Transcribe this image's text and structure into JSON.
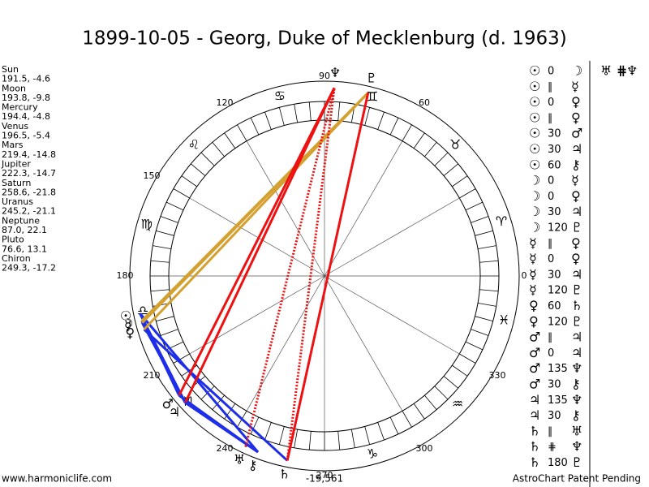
{
  "title": "1899-10-05 - Georg, Duke of Mecklenburg (d. 1963)",
  "planets": [
    {
      "name": "Sun",
      "coords": "191.5, -4.6",
      "glyph": "☉"
    },
    {
      "name": "Moon",
      "coords": "193.8, -9.8",
      "glyph": "☽"
    },
    {
      "name": "Mercury",
      "coords": "194.4, -4.8",
      "glyph": "☿"
    },
    {
      "name": "Venus",
      "coords": "196.5, -5.4",
      "glyph": "♀"
    },
    {
      "name": "Mars",
      "coords": "219.4, -14.8",
      "glyph": "♂"
    },
    {
      "name": "Jupiter",
      "coords": "222.3, -14.7",
      "glyph": "♃"
    },
    {
      "name": "Saturn",
      "coords": "258.6, -21.8",
      "glyph": "♄"
    },
    {
      "name": "Uranus",
      "coords": "245.2, -21.1",
      "glyph": "♅"
    },
    {
      "name": "Neptune",
      "coords": "87.0, 22.1",
      "glyph": "♆"
    },
    {
      "name": "Pluto",
      "coords": "76.6, 13.1",
      "glyph": "♇"
    },
    {
      "name": "Chiron",
      "coords": "249.3, -17.2",
      "glyph": "⚷"
    }
  ],
  "signs": [
    "♈",
    "♉",
    "♊",
    "♋",
    "♌",
    "♍",
    "♎",
    "♏",
    "♑",
    "♒",
    "♓"
  ],
  "degree_labels": [
    0,
    60,
    90,
    120,
    150,
    180,
    210,
    240,
    270,
    300,
    330
  ],
  "aspects": [
    {
      "a": "☉",
      "aspect": "0",
      "b": "☽"
    },
    {
      "a": "☉",
      "aspect": "∥",
      "b": "☿"
    },
    {
      "a": "☉",
      "aspect": "0",
      "b": "♀"
    },
    {
      "a": "☉",
      "aspect": "∥",
      "b": "♀"
    },
    {
      "a": "☉",
      "aspect": "30",
      "b": "♂"
    },
    {
      "a": "☉",
      "aspect": "30",
      "b": "♃"
    },
    {
      "a": "☉",
      "aspect": "60",
      "b": "⚷"
    },
    {
      "a": "☽",
      "aspect": "0",
      "b": "☿"
    },
    {
      "a": "☽",
      "aspect": "0",
      "b": "♀"
    },
    {
      "a": "☽",
      "aspect": "30",
      "b": "♃"
    },
    {
      "a": "☽",
      "aspect": "120",
      "b": "♇"
    },
    {
      "a": "☿",
      "aspect": "∥",
      "b": "♀"
    },
    {
      "a": "☿",
      "aspect": "0",
      "b": "♀"
    },
    {
      "a": "☿",
      "aspect": "30",
      "b": "♃"
    },
    {
      "a": "☿",
      "aspect": "120",
      "b": "♇"
    },
    {
      "a": "♀",
      "aspect": "60",
      "b": "♄"
    },
    {
      "a": "♀",
      "aspect": "120",
      "b": "♇"
    },
    {
      "a": "♂",
      "aspect": "∥",
      "b": "♃"
    },
    {
      "a": "♂",
      "aspect": "0",
      "b": "♃"
    },
    {
      "a": "♂",
      "aspect": "135",
      "b": "♆"
    },
    {
      "a": "♂",
      "aspect": "30",
      "b": "⚷"
    },
    {
      "a": "♃",
      "aspect": "135",
      "b": "♆"
    },
    {
      "a": "♃",
      "aspect": "30",
      "b": "⚷"
    },
    {
      "a": "♄",
      "aspect": "∥",
      "b": "♅"
    },
    {
      "a": "♄",
      "aspect": "⋕",
      "b": "♆"
    },
    {
      "a": "♄",
      "aspect": "180",
      "b": "♇"
    }
  ],
  "top_aspect": {
    "a": "♅",
    "aspect": "⋕",
    "b": "♆"
  },
  "line_colors": {
    "30": "#1e2ee8",
    "60": "#1e2ee8",
    "120": "#d4a030",
    "135": "#ee1111",
    "180": "#ee1111",
    "⋕": "#ee1111"
  },
  "footer": {
    "left": "www.harmoniclife.com",
    "center": "-19,561",
    "right": "AstroChart Patent Pending"
  }
}
